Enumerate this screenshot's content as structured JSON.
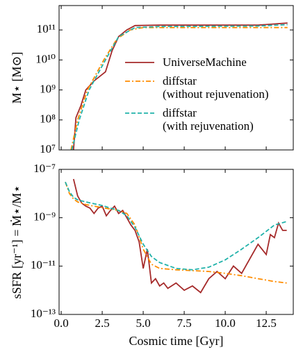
{
  "chart_data": [
    {
      "type": "line",
      "ylabel": "M⋆ [M⊙]",
      "xlim": [
        -0.13,
        14.15
      ],
      "ylim": [
        10000000.0,
        650000000000.0
      ],
      "log_y": true,
      "yticks": [
        {
          "value": 10000000.0,
          "label": "10⁷"
        },
        {
          "value": 100000000.0,
          "label": "10⁸"
        },
        {
          "value": 1000000000.0,
          "label": "10⁹"
        },
        {
          "value": 10000000000.0,
          "label": "10¹⁰"
        },
        {
          "value": 100000000000.0,
          "label": "10¹¹"
        }
      ],
      "legend": "center right",
      "series": [
        {
          "name": "UniverseMachine",
          "color": "#a52a2a",
          "dash": "solid",
          "x": [
            0.75,
            0.9,
            1.2,
            1.5,
            2.0,
            2.7,
            3.1,
            3.5,
            4.0,
            4.5,
            6.0,
            12.0,
            13.8
          ],
          "values": [
            10000000.0,
            120000000.0,
            300000000.0,
            1000000000.0,
            2000000000.0,
            4000000000.0,
            20000000000.0,
            60000000000.0,
            100000000000.0,
            140000000000.0,
            145000000000.0,
            145000000000.0,
            170000000000.0
          ]
        },
        {
          "name": "diffstar\n(without rejuvenation)",
          "color": "#ff8c00",
          "dash": "dashdot",
          "x": [
            0.6,
            1.0,
            1.6,
            2.6,
            3.4,
            4.2,
            5.0,
            13.8
          ],
          "values": [
            10000000.0,
            100000000.0,
            1000000000.0,
            10000000000.0,
            50000000000.0,
            100000000000.0,
            120000000000.0,
            120000000000.0
          ]
        },
        {
          "name": "diffstar\n(with rejuvenation)",
          "color": "#20b2aa",
          "dash": "dashed",
          "x": [
            0.65,
            1.1,
            1.7,
            2.7,
            3.5,
            4.5,
            6.0,
            12.0,
            13.8
          ],
          "values": [
            10000000.0,
            100000000.0,
            1000000000.0,
            10000000000.0,
            60000000000.0,
            120000000000.0,
            130000000000.0,
            135000000000.0,
            150000000000.0
          ]
        }
      ]
    },
    {
      "type": "line",
      "xlabel": "Cosmic time [Gyr]",
      "ylabel": "sSFR [yr⁻¹] = Ṁ⋆/M⋆",
      "xlim": [
        -0.13,
        14.15
      ],
      "ylim": [
        1e-13,
        1e-07
      ],
      "log_y": true,
      "xticks": [
        {
          "value": 0,
          "label": "0.0"
        },
        2.5,
        {
          "value": 5,
          "label": "5.0"
        },
        7.5,
        {
          "value": 10,
          "label": "10.0"
        },
        12.5
      ],
      "yticks": [
        {
          "value": 1e-13,
          "label": "10⁻¹³"
        },
        {
          "value": 1e-11,
          "label": "10⁻¹¹"
        },
        {
          "value": 1e-09,
          "label": "10⁻⁹"
        },
        {
          "value": 1e-07,
          "label": "10⁻⁷"
        }
      ],
      "series": [
        {
          "color": "#a52a2a",
          "dash": "solid",
          "x": [
            0.75,
            1,
            1.25,
            1.5,
            1.75,
            2,
            2.25,
            2.5,
            2.75,
            3,
            3.25,
            3.5,
            3.75,
            4,
            4.25,
            4.5,
            4.75,
            5,
            5.25,
            5.5,
            5.75,
            6,
            6.25,
            6.5,
            7,
            7.5,
            8,
            8.5,
            9,
            9.5,
            10,
            10.5,
            11,
            11.5,
            12,
            12.5,
            12.75,
            13,
            13.25,
            13.5,
            13.75
          ],
          "values": [
            4e-08,
            8e-09,
            4e-09,
            3e-09,
            2.5e-09,
            1.5e-09,
            2.5e-09,
            3e-09,
            1.2e-09,
            2e-09,
            3e-09,
            1.5e-09,
            2e-09,
            1e-09,
            5e-10,
            3e-10,
            1e-10,
            8e-12,
            5e-11,
            2e-12,
            3e-12,
            1.5e-12,
            2e-12,
            1.2e-12,
            2e-12,
            1e-12,
            1.5e-12,
            8e-13,
            3e-12,
            6e-12,
            3e-12,
            1e-11,
            5e-12,
            2e-11,
            8e-11,
            3e-11,
            2e-10,
            1.5e-10,
            6e-10,
            3e-10,
            3e-10
          ]
        },
        {
          "color": "#ff8c00",
          "dash": "dashdot",
          "x": [
            0.25,
            0.5,
            0.75,
            1,
            1.5,
            2,
            2.5,
            3,
            3.5,
            4,
            4.5,
            5,
            5.5,
            6,
            7,
            8,
            9,
            10,
            11,
            12,
            13,
            13.75
          ],
          "values": [
            3e-08,
            1e-08,
            6e-09,
            4.5e-09,
            3.5e-09,
            3e-09,
            2.6e-09,
            2.3e-09,
            2e-09,
            1.5e-09,
            5e-10,
            5e-11,
            1.2e-11,
            8e-12,
            7e-12,
            6.5e-12,
            6e-12,
            5e-12,
            4e-12,
            3e-12,
            2.3e-12,
            2e-12
          ]
        },
        {
          "color": "#20b2aa",
          "dash": "dashed",
          "x": [
            0.25,
            0.5,
            0.75,
            1,
            1.5,
            2,
            2.5,
            3,
            3.5,
            4,
            4.5,
            5,
            5.5,
            6,
            7,
            8,
            9,
            10,
            11,
            12,
            13,
            13.75
          ],
          "values": [
            3e-08,
            1.2e-08,
            7e-09,
            5.5e-09,
            4.5e-09,
            3.8e-09,
            3.2e-09,
            2.5e-09,
            2e-09,
            1.2e-09,
            4e-10,
            8e-11,
            2.5e-11,
            1.4e-11,
            8e-12,
            7e-12,
            9e-12,
            1.8e-11,
            5e-11,
            1.5e-10,
            5e-10,
            7e-10
          ]
        }
      ]
    }
  ]
}
